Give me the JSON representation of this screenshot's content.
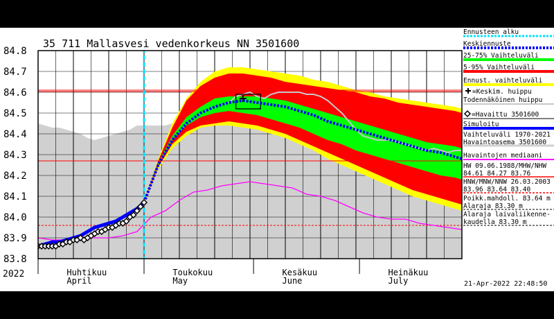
{
  "chart_data": {
    "type": "area",
    "title": "35 711 Mallasvesi vedenkorkeus NN 3501600",
    "year_label": "2022",
    "timestamp": "21-Apr-2022 22:48:50",
    "ylim": [
      83.8,
      84.8
    ],
    "y_ticks": [
      "83.8",
      "83.9",
      "84.0",
      "84.1",
      "84.2",
      "84.3",
      "84.4",
      "84.5",
      "84.6",
      "84.7",
      "84.8"
    ],
    "x_range_days": [
      0,
      120
    ],
    "month_labels": [
      {
        "fi": "Huhtikuu",
        "en": "April",
        "day": 14
      },
      {
        "fi": "Toukokuu",
        "en": "May",
        "day": 44
      },
      {
        "fi": "Kesäkuu",
        "en": "June",
        "day": 75
      },
      {
        "fi": "Heinäkuu",
        "en": "July",
        "day": 105
      }
    ],
    "forecast_start_day": 30,
    "reference_lines": {
      "hw": 84.61,
      "mhw": 84.27,
      "nhw": 83.76,
      "hnw": 83.96,
      "mnw": 83.64,
      "nnw": 83.4,
      "navigation_low": 83.3
    },
    "series": {
      "historical_range": {
        "x": [
          0,
          2,
          4,
          6,
          8,
          10,
          12,
          14,
          16,
          18,
          20,
          22,
          24,
          26,
          28,
          30,
          32,
          34,
          36,
          38,
          40,
          42,
          44,
          46,
          48,
          50,
          52,
          54,
          56,
          58,
          60,
          62,
          64,
          66,
          68,
          70,
          72,
          74,
          76,
          78,
          80,
          82,
          84,
          86,
          88,
          90,
          92,
          94,
          96,
          98,
          100,
          102,
          104,
          106,
          108,
          110,
          112,
          114,
          116,
          118,
          120
        ],
        "upper": [
          84.45,
          84.44,
          84.43,
          84.43,
          84.42,
          84.41,
          84.4,
          84.38,
          84.37,
          84.38,
          84.39,
          84.4,
          84.41,
          84.42,
          84.44,
          84.44,
          84.44,
          84.44,
          84.44,
          84.45,
          84.47,
          84.49,
          84.5,
          84.52,
          84.55,
          84.57,
          84.58,
          84.59,
          84.6,
          84.6,
          84.6,
          84.59,
          84.58,
          84.58,
          84.57,
          84.57,
          84.56,
          84.55,
          84.54,
          84.53,
          84.52,
          84.51,
          84.5,
          84.49,
          84.48,
          84.47,
          84.46,
          84.45,
          84.44,
          84.43,
          84.42,
          84.41,
          84.4,
          84.39,
          84.38,
          84.38,
          84.37,
          84.36,
          84.35,
          84.34,
          84.33
        ],
        "lower": [
          83.8,
          83.8,
          83.8,
          83.8,
          83.8,
          83.8,
          83.8,
          83.8,
          83.8,
          83.8,
          83.8,
          83.8,
          83.8,
          83.8,
          83.8,
          83.8,
          83.8,
          83.8,
          83.8,
          83.8,
          83.8,
          83.8,
          83.8,
          83.8,
          83.8,
          83.8,
          83.8,
          83.8,
          83.8,
          83.8,
          83.8,
          83.8,
          83.8,
          83.8,
          83.8,
          83.8,
          83.8,
          83.8,
          83.8,
          83.8,
          83.8,
          83.8,
          83.8,
          83.8,
          83.8,
          83.8,
          83.8,
          83.8,
          83.8,
          83.8,
          83.8,
          83.8,
          83.8,
          83.8,
          83.8,
          83.8,
          83.8,
          83.8,
          83.8,
          83.8,
          83.8
        ]
      },
      "forecast_bands": {
        "x": [
          30,
          34,
          38,
          42,
          46,
          50,
          54,
          58,
          62,
          66,
          70,
          74,
          78,
          82,
          86,
          90,
          94,
          98,
          102,
          106,
          110,
          114,
          118,
          120
        ],
        "envelope_upper": [
          84.07,
          84.28,
          84.45,
          84.57,
          84.65,
          84.7,
          84.72,
          84.72,
          84.71,
          84.7,
          84.69,
          84.68,
          84.66,
          84.65,
          84.63,
          84.61,
          84.6,
          84.58,
          84.57,
          84.56,
          84.55,
          84.54,
          84.53,
          84.52
        ],
        "envelope_lower": [
          84.07,
          84.23,
          84.33,
          84.39,
          84.43,
          84.44,
          84.44,
          84.43,
          84.42,
          84.4,
          84.38,
          84.35,
          84.32,
          84.28,
          84.25,
          84.22,
          84.19,
          84.16,
          84.13,
          84.1,
          84.08,
          84.06,
          84.04,
          84.03
        ],
        "p05_upper": [
          84.07,
          84.27,
          84.43,
          84.56,
          84.63,
          84.67,
          84.69,
          84.69,
          84.68,
          84.67,
          84.65,
          84.64,
          84.63,
          84.62,
          84.61,
          84.6,
          84.58,
          84.57,
          84.55,
          84.54,
          84.53,
          84.52,
          84.51,
          84.5
        ],
        "p95_lower": [
          84.07,
          84.24,
          84.35,
          84.41,
          84.44,
          84.45,
          84.46,
          84.45,
          84.44,
          84.42,
          84.4,
          84.37,
          84.34,
          84.31,
          84.28,
          84.25,
          84.22,
          84.19,
          84.16,
          84.13,
          84.11,
          84.09,
          84.07,
          84.06
        ],
        "p25_upper": [
          84.07,
          84.26,
          84.39,
          84.48,
          84.53,
          84.57,
          84.58,
          84.58,
          84.58,
          84.57,
          84.56,
          84.54,
          84.52,
          84.5,
          84.48,
          84.46,
          84.44,
          84.42,
          84.4,
          84.38,
          84.36,
          84.35,
          84.34,
          84.33
        ],
        "p75_lower": [
          84.07,
          84.25,
          84.37,
          84.44,
          84.48,
          84.5,
          84.51,
          84.5,
          84.49,
          84.47,
          84.45,
          84.43,
          84.4,
          84.37,
          84.35,
          84.32,
          84.3,
          84.28,
          84.26,
          84.24,
          84.22,
          84.2,
          84.19,
          84.18
        ]
      },
      "forecast_mean": {
        "x": [
          30,
          34,
          38,
          42,
          46,
          50,
          54,
          58,
          62,
          66,
          70,
          74,
          78,
          82,
          86,
          90,
          94,
          98,
          102,
          106,
          110,
          114,
          118,
          120
        ],
        "y": [
          84.07,
          84.25,
          84.37,
          84.45,
          84.5,
          84.53,
          84.55,
          84.56,
          84.55,
          84.54,
          84.53,
          84.51,
          84.49,
          84.46,
          84.44,
          84.42,
          84.4,
          84.38,
          84.36,
          84.34,
          84.32,
          84.31,
          84.29,
          84.28
        ]
      },
      "observed": {
        "x": [
          0,
          1,
          2,
          3,
          4,
          5,
          6,
          7,
          8,
          9,
          10,
          11,
          12,
          13,
          14,
          15,
          16,
          17,
          18,
          19,
          20,
          21,
          22,
          23,
          24,
          25,
          26,
          27,
          28,
          29,
          30
        ],
        "y": [
          83.86,
          83.86,
          83.86,
          83.86,
          83.86,
          83.86,
          83.87,
          83.87,
          83.88,
          83.88,
          83.89,
          83.89,
          83.9,
          83.89,
          83.9,
          83.91,
          83.92,
          83.93,
          83.93,
          83.94,
          83.95,
          83.95,
          83.96,
          83.97,
          83.97,
          83.98,
          84.0,
          84.01,
          84.03,
          84.05,
          84.07
        ]
      },
      "simulated": {
        "x": [
          0,
          2,
          4,
          6,
          8,
          10,
          12,
          14,
          16,
          18,
          20,
          22,
          24,
          26,
          28,
          30
        ],
        "y": [
          83.86,
          83.87,
          83.88,
          83.88,
          83.89,
          83.9,
          83.91,
          83.93,
          83.95,
          83.96,
          83.97,
          83.98,
          84.0,
          84.02,
          84.04,
          84.07
        ]
      },
      "median": {
        "x": [
          0,
          4,
          8,
          12,
          16,
          20,
          24,
          28,
          32,
          36,
          40,
          44,
          48,
          52,
          56,
          60,
          64,
          68,
          72,
          76,
          80,
          84,
          88,
          92,
          96,
          100,
          104,
          108,
          112,
          116,
          120
        ],
        "y": [
          83.9,
          83.89,
          83.89,
          83.9,
          83.9,
          83.9,
          83.91,
          83.93,
          84.0,
          84.03,
          84.08,
          84.12,
          84.13,
          84.15,
          84.16,
          84.17,
          84.16,
          84.15,
          84.14,
          84.11,
          84.1,
          84.08,
          84.05,
          84.02,
          84.0,
          83.99,
          83.99,
          83.97,
          83.96,
          83.95,
          83.94
        ]
      },
      "probable_peak": {
        "x": [
          54,
          56,
          58,
          60,
          62,
          64,
          66,
          68,
          70,
          72,
          74,
          76,
          78,
          80,
          82,
          84,
          86,
          88,
          90,
          92,
          94,
          96,
          98,
          100,
          102,
          104,
          106,
          108,
          110,
          112,
          114,
          116,
          118,
          120
        ],
        "y": [
          84.55,
          84.58,
          84.59,
          84.6,
          84.58,
          84.57,
          84.59,
          84.6,
          84.6,
          84.6,
          84.6,
          84.59,
          84.59,
          84.58,
          84.56,
          84.53,
          84.5,
          84.46,
          84.42,
          84.39,
          84.38,
          84.37,
          84.37,
          84.37,
          84.36,
          84.35,
          84.34,
          84.33,
          84.32,
          84.33,
          84.32,
          84.31,
          84.32,
          84.32
        ]
      },
      "peak_box": {
        "x0": 56,
        "x1": 63,
        "y0": 84.52,
        "y1": 84.59,
        "mean_peak_x": 58,
        "mean_peak_y": 84.57
      }
    },
    "colors": {
      "forecast_start": "#00e5ff",
      "forecast_mean": "#0000ff",
      "band_25_75": "#00ff00",
      "band_5_95": "#ff0000",
      "band_envelope": "#ffff00",
      "probable_peak": "#c8c8c8",
      "observed": "#000000",
      "simulated": "#0000ff",
      "historical_range": "#d0d0d0",
      "median": "#ff00ff",
      "hw_lines": "#ff0000"
    }
  },
  "legend": {
    "items": [
      {
        "key": "forecast_start",
        "label": "Ennusteen alku"
      },
      {
        "key": "forecast_mean",
        "label": "Keskiennuste"
      },
      {
        "key": "band_25_75",
        "label": "25-75% Vaihteluväli"
      },
      {
        "key": "band_5_95",
        "label": "5-95% Vaihteluväli"
      },
      {
        "key": "band_envelope",
        "label": "Ennust. vaihteluväli"
      },
      {
        "key": "mean_peak",
        "label": "=Keskim. huippu"
      },
      {
        "key": "probable_peak",
        "label": "Todennäköinen huippu"
      },
      {
        "key": "observed",
        "label": "=Havaittu 3501600"
      },
      {
        "key": "simulated",
        "label": "Simuloitu"
      },
      {
        "key": "historical_range",
        "label": "Vaihteluväli 1970-2021",
        "line2": "Havaintoasema 3501600"
      },
      {
        "key": "median",
        "label": "Havaintojen mediaani"
      },
      {
        "key": "hw",
        "label": "HW 09.06.1988/MHW/NHW",
        "line2": "84.61 84.27 83.76"
      },
      {
        "key": "hnw",
        "label": "HNW/MNW/NNW 26.03.2003",
        "line2": "83.96 83.64 83.40"
      },
      {
        "key": "regulation_low",
        "label": "Poikk.mahdoll. 83.64 m",
        "line2": "Alaraja 83.30 m"
      },
      {
        "key": "navigation_low",
        "label": "Alaraja laivaliikenne-",
        "line2": "kaudella 83.30 m"
      }
    ]
  }
}
